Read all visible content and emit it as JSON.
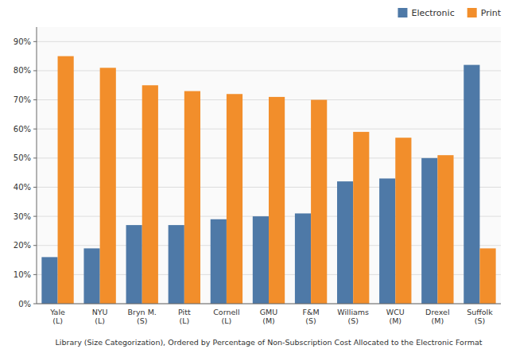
{
  "chart_data": {
    "type": "bar",
    "xlabel": "Library (Size Categorization), Ordered by Percentage of Non-Subscription Cost Allocated to the Electronic Format",
    "categories": [
      "Yale (L)",
      "NYU (L)",
      "Bryn M. (S)",
      "Pitt (L)",
      "Cornell (L)",
      "GMU (M)",
      "F&M (S)",
      "Williams (S)",
      "WCU (M)",
      "Drexel (M)",
      "Suffolk (S)"
    ],
    "series": [
      {
        "name": "Electronic",
        "color": "#4e79a7",
        "values": [
          16,
          19,
          27,
          27,
          29,
          30,
          31,
          42,
          43,
          50,
          82
        ]
      },
      {
        "name": "Print",
        "color": "#f28e2b",
        "values": [
          85,
          81,
          75,
          73,
          72,
          71,
          70,
          59,
          57,
          51,
          19
        ]
      }
    ],
    "ylim": [
      0,
      95
    ],
    "yticks": [
      {
        "value": 0,
        "label": "0%"
      },
      {
        "value": 10,
        "label": "10%"
      },
      {
        "value": 20,
        "label": "20%"
      },
      {
        "value": 30,
        "label": "30%"
      },
      {
        "value": 40,
        "label": "40%"
      },
      {
        "value": 50,
        "label": "50%"
      },
      {
        "value": 60,
        "label": "60%"
      },
      {
        "value": 70,
        "label": "70%"
      },
      {
        "value": 80,
        "label": "80%"
      },
      {
        "value": 90,
        "label": "90%"
      }
    ],
    "grid": true,
    "legend": "upper right"
  }
}
